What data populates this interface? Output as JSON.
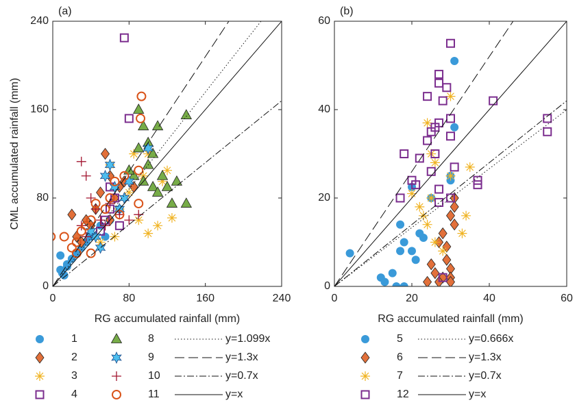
{
  "chart_data": [
    {
      "type": "scatter",
      "label": "(a)",
      "x_label": "RG accumulated rainfall (mm)",
      "y_label": "CML accumulated rainfall (mm)",
      "xlim": [
        0,
        240
      ],
      "ylim": [
        0,
        240
      ],
      "xticks": [
        0,
        80,
        160,
        240
      ],
      "yticks": [
        0,
        80,
        160,
        240
      ],
      "series": [
        {
          "name": "1",
          "color": "#3a9ad9",
          "marker": "circle",
          "x": [
            8,
            8,
            10,
            12,
            15,
            20,
            25,
            30,
            40,
            50,
            60,
            70,
            15,
            35,
            55
          ],
          "values": [
            28,
            15,
            12,
            10,
            20,
            25,
            30,
            35,
            45,
            55,
            60,
            70,
            18,
            40,
            45
          ]
        },
        {
          "name": "2",
          "color": "#e2703a",
          "marker": "diamond",
          "x": [
            20,
            25,
            35,
            45,
            50,
            55,
            60,
            65,
            70,
            30,
            40,
            60,
            75,
            85
          ],
          "values": [
            65,
            45,
            60,
            70,
            85,
            120,
            100,
            80,
            90,
            40,
            55,
            60,
            95,
            90
          ]
        },
        {
          "name": "3",
          "color": "#f0b323",
          "marker": "asterisk",
          "x": [
            60,
            70,
            80,
            90,
            95,
            100,
            110,
            115,
            120,
            125,
            85,
            50,
            65,
            100
          ],
          "values": [
            110,
            70,
            85,
            60,
            100,
            48,
            55,
            95,
            105,
            62,
            120,
            40,
            45,
            120
          ]
        },
        {
          "name": "4",
          "color": "#7b2d8e",
          "marker": "square",
          "x": [
            75,
            80,
            60,
            65,
            55,
            70,
            50,
            60
          ],
          "values": [
            225,
            152,
            90,
            80,
            60,
            55,
            50,
            70
          ]
        },
        {
          "name": "8",
          "color": "#77ac48",
          "marker": "triangle",
          "x": [
            90,
            95,
            110,
            140,
            90,
            100,
            105,
            110,
            120,
            125,
            140,
            115,
            100,
            85,
            95,
            130,
            105,
            80
          ],
          "values": [
            160,
            145,
            145,
            155,
            125,
            110,
            90,
            85,
            90,
            75,
            75,
            100,
            130,
            100,
            95,
            95,
            120,
            105
          ]
        },
        {
          "name": "9",
          "color": "#4dbeee",
          "marker": "hexagram",
          "x": [
            45,
            55,
            60,
            65,
            70,
            80,
            100,
            50,
            40,
            75
          ],
          "values": [
            45,
            100,
            110,
            90,
            70,
            95,
            125,
            35,
            50,
            80
          ]
        },
        {
          "name": "10",
          "color": "#a2142f",
          "marker": "plus",
          "x": [
            30,
            35,
            40,
            45,
            50,
            60,
            70,
            80,
            30,
            35,
            55,
            90
          ],
          "values": [
            113,
            100,
            80,
            70,
            60,
            75,
            65,
            60,
            55,
            45,
            55,
            65
          ]
        },
        {
          "name": "11",
          "color": "#d95319",
          "marker": "ring",
          "x": [
            -2,
            12,
            20,
            25,
            30,
            35,
            40,
            45,
            55,
            60,
            65,
            75,
            90,
            93,
            92,
            90,
            25,
            40,
            70
          ],
          "values": [
            45,
            45,
            35,
            40,
            50,
            55,
            60,
            75,
            70,
            80,
            95,
            100,
            105,
            172,
            152,
            75,
            30,
            30,
            65
          ]
        }
      ],
      "lines": [
        {
          "name": "y=1.099x",
          "slope": 1.099,
          "dash": "1.5 3"
        },
        {
          "name": "y=1.3x",
          "slope": 1.3,
          "dash": "14 6"
        },
        {
          "name": "y=0.7x",
          "slope": 0.7,
          "dash": "10 3 2 3"
        },
        {
          "name": "y=x",
          "slope": 1,
          "dash": "none"
        }
      ]
    },
    {
      "type": "scatter",
      "label": "(b)",
      "x_label": "RG accumulated rainfall (mm)",
      "xlim": [
        0,
        60
      ],
      "ylim": [
        0,
        60
      ],
      "xticks": [
        0,
        20,
        40,
        60
      ],
      "yticks": [
        0,
        20,
        40,
        60
      ],
      "series": [
        {
          "name": "5",
          "color": "#3a9ad9",
          "marker": "circle",
          "x": [
            4,
            31,
            31,
            30,
            30,
            20,
            17,
            18,
            20,
            15,
            12,
            13,
            16,
            18,
            22,
            25,
            21,
            23,
            17
          ],
          "values": [
            7.5,
            51,
            36,
            24,
            25,
            22.5,
            14,
            10,
            8,
            3,
            2,
            1,
            0,
            0,
            12,
            20,
            6,
            11,
            8
          ]
        },
        {
          "name": "6",
          "color": "#e2703a",
          "marker": "diamond",
          "x": [
            30,
            31,
            28,
            27,
            29,
            30,
            28,
            30,
            24,
            26,
            25,
            31,
            31,
            29,
            27,
            30
          ],
          "values": [
            16,
            14,
            12,
            10,
            6,
            4,
            2,
            2,
            1,
            3,
            5,
            20,
            18,
            9,
            1,
            1
          ]
        },
        {
          "name": "7",
          "color": "#f0b323",
          "marker": "asterisk",
          "x": [
            24,
            25,
            26,
            30,
            35,
            34,
            33,
            22,
            24,
            26,
            20,
            25,
            28,
            30,
            23
          ],
          "values": [
            37,
            30,
            28,
            43,
            27,
            16,
            12,
            18,
            14,
            10,
            21,
            20,
            8,
            25,
            16
          ]
        },
        {
          "name": "12",
          "color": "#7b2d8e",
          "marker": "square",
          "x": [
            30,
            27,
            27,
            29,
            28,
            24,
            41,
            55,
            55,
            25,
            27,
            24,
            26,
            30,
            30,
            18,
            22,
            26,
            31,
            20,
            21,
            25,
            27,
            37,
            37,
            27,
            17,
            30,
            28
          ],
          "values": [
            55,
            48,
            46,
            45,
            42,
            43,
            42,
            38,
            35,
            35,
            37,
            33,
            36,
            38,
            34,
            30,
            29,
            30,
            27,
            24,
            23,
            26,
            22,
            23,
            24,
            19,
            20,
            20,
            2
          ]
        }
      ],
      "lines": [
        {
          "name": "y=0.666x",
          "slope": 0.666,
          "dash": "1.5 3"
        },
        {
          "name": "y=1.3x",
          "slope": 1.3,
          "dash": "14 6"
        },
        {
          "name": "y=0.7x",
          "slope": 0.7,
          "dash": "10 3 2 3"
        },
        {
          "name": "y=x",
          "slope": 1,
          "dash": "none"
        }
      ]
    }
  ]
}
